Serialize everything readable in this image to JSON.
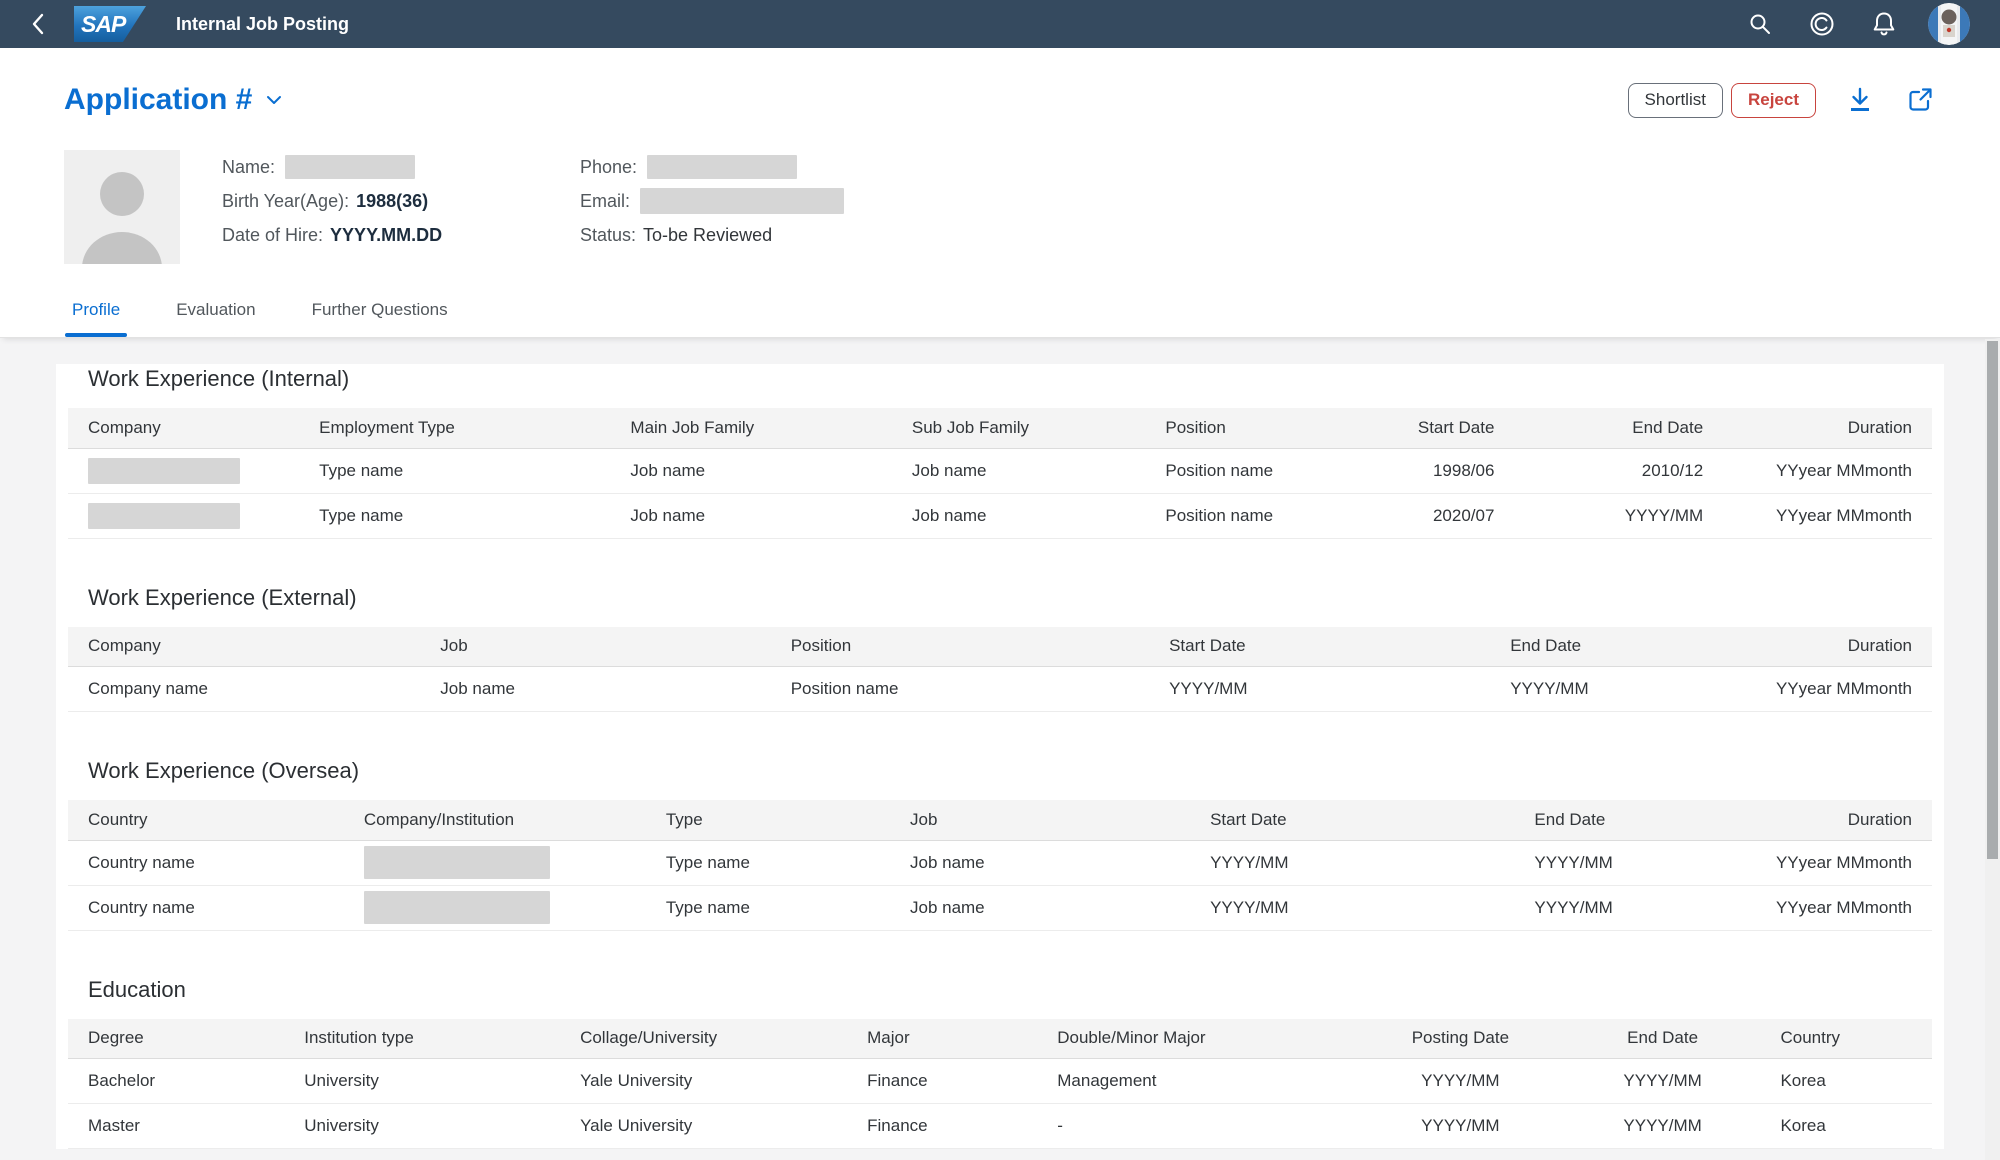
{
  "shell": {
    "logo_text": "SAP",
    "app_title": "Internal Job Posting"
  },
  "page": {
    "title": "Application #"
  },
  "actions": {
    "shortlist": "Shortlist",
    "reject": "Reject"
  },
  "profile": {
    "left": [
      {
        "label": "Name:",
        "value": "",
        "redacted": true
      },
      {
        "label": "Birth Year(Age):",
        "value": "1988(36)",
        "redacted": false
      },
      {
        "label": "Date of Hire:",
        "value": "YYYY.MM.DD",
        "redacted": false
      }
    ],
    "right": [
      {
        "label": "Phone:",
        "value": "",
        "redacted": true
      },
      {
        "label": "Email:",
        "value": "",
        "redacted": true
      },
      {
        "label": "Status:",
        "value": "To-be Reviewed",
        "redacted": false
      }
    ]
  },
  "tabs": [
    {
      "label": "Profile",
      "active": true
    },
    {
      "label": "Evaluation",
      "active": false
    },
    {
      "label": "Further Questions",
      "active": false
    }
  ],
  "sections": [
    {
      "title": "Work Experience (Internal)",
      "columns": [
        {
          "label": "Company",
          "width": "12.4%",
          "align": "left"
        },
        {
          "label": "Employment Type",
          "width": "16.7%",
          "align": "left"
        },
        {
          "label": "Main Job Family",
          "width": "15.1%",
          "align": "left"
        },
        {
          "label": "Sub Job Family",
          "width": "13.6%",
          "align": "left"
        },
        {
          "label": "Position",
          "width": "13.0%",
          "align": "left"
        },
        {
          "label": "Start Date",
          "width": "6.8%",
          "align": "right"
        },
        {
          "label": "End Date",
          "width": "11.2%",
          "align": "right"
        },
        {
          "label": "Duration",
          "width": "11.2%",
          "align": "right"
        }
      ],
      "rows": [
        [
          {
            "redacted": "sm"
          },
          "Type name",
          "Job name",
          "Job name",
          "Position name",
          "1998/06",
          "2010/12",
          "YYyear MMmonth"
        ],
        [
          {
            "redacted": "sm"
          },
          "Type name",
          "Job name",
          "Job name",
          "Position name",
          "2020/07",
          "YYYY/MM",
          "YYyear MMmonth"
        ]
      ]
    },
    {
      "title": "Work Experience (External)",
      "columns": [
        {
          "label": "Company",
          "width": "18.9%",
          "align": "left"
        },
        {
          "label": "Job",
          "width": "18.8%",
          "align": "left"
        },
        {
          "label": "Position",
          "width": "20.3%",
          "align": "left"
        },
        {
          "label": "Start Date",
          "width": "18.3%",
          "align": "left"
        },
        {
          "label": "End Date",
          "width": "12.7%",
          "align": "left"
        },
        {
          "label": "Duration",
          "width": "11.0%",
          "align": "right"
        }
      ],
      "rows": [
        [
          "Company name",
          "Job name",
          "Position name",
          "YYYY/MM",
          "YYYY/MM",
          "YYyear MMmonth"
        ]
      ]
    },
    {
      "title": "Work Experience (Oversea)",
      "columns": [
        {
          "label": "Country",
          "width": "14.8%",
          "align": "left"
        },
        {
          "label": "Company/Institution",
          "width": "16.2%",
          "align": "left"
        },
        {
          "label": "Type",
          "width": "13.1%",
          "align": "left"
        },
        {
          "label": "Job",
          "width": "16.1%",
          "align": "left"
        },
        {
          "label": "Start Date",
          "width": "17.4%",
          "align": "left"
        },
        {
          "label": "End Date",
          "width": "11.3%",
          "align": "left"
        },
        {
          "label": "Duration",
          "width": "11.1%",
          "align": "right"
        }
      ],
      "rows": [
        [
          "Country name",
          {
            "redacted": "lg"
          },
          "Type name",
          "Job name",
          "YYYY/MM",
          "YYYY/MM",
          "YYyear MMmonth"
        ],
        [
          "Country name",
          {
            "redacted": "lg"
          },
          "Type name",
          "Job name",
          "YYYY/MM",
          "YYYY/MM",
          "YYyear MMmonth"
        ]
      ]
    },
    {
      "title": "Education",
      "columns": [
        {
          "label": "Degree",
          "width": "11.6%",
          "align": "left"
        },
        {
          "label": "Institution type",
          "width": "14.8%",
          "align": "left"
        },
        {
          "label": "Collage/University",
          "width": "15.4%",
          "align": "left"
        },
        {
          "label": "Major",
          "width": "10.2%",
          "align": "left"
        },
        {
          "label": "Double/Minor Major",
          "width": "17.1%",
          "align": "left"
        },
        {
          "label": "Posting Date",
          "width": "11.2%",
          "align": "center"
        },
        {
          "label": "End Date",
          "width": "10.5%",
          "align": "center"
        },
        {
          "label": "Country",
          "width": "9.2%",
          "align": "left"
        }
      ],
      "rows": [
        [
          "Bachelor",
          "University",
          "Yale University",
          "Finance",
          "Management",
          "YYYY/MM",
          "YYYY/MM",
          "Korea"
        ],
        [
          "Master",
          "University",
          "Yale University",
          "Finance",
          "-",
          "YYYY/MM",
          "YYYY/MM",
          "Korea"
        ]
      ]
    }
  ],
  "colors": {
    "shell_bar": "#354a5f",
    "accent_blue": "#0a6ed1",
    "reject_red": "#c8443e",
    "redaction_gray": "#d6d6d6"
  }
}
